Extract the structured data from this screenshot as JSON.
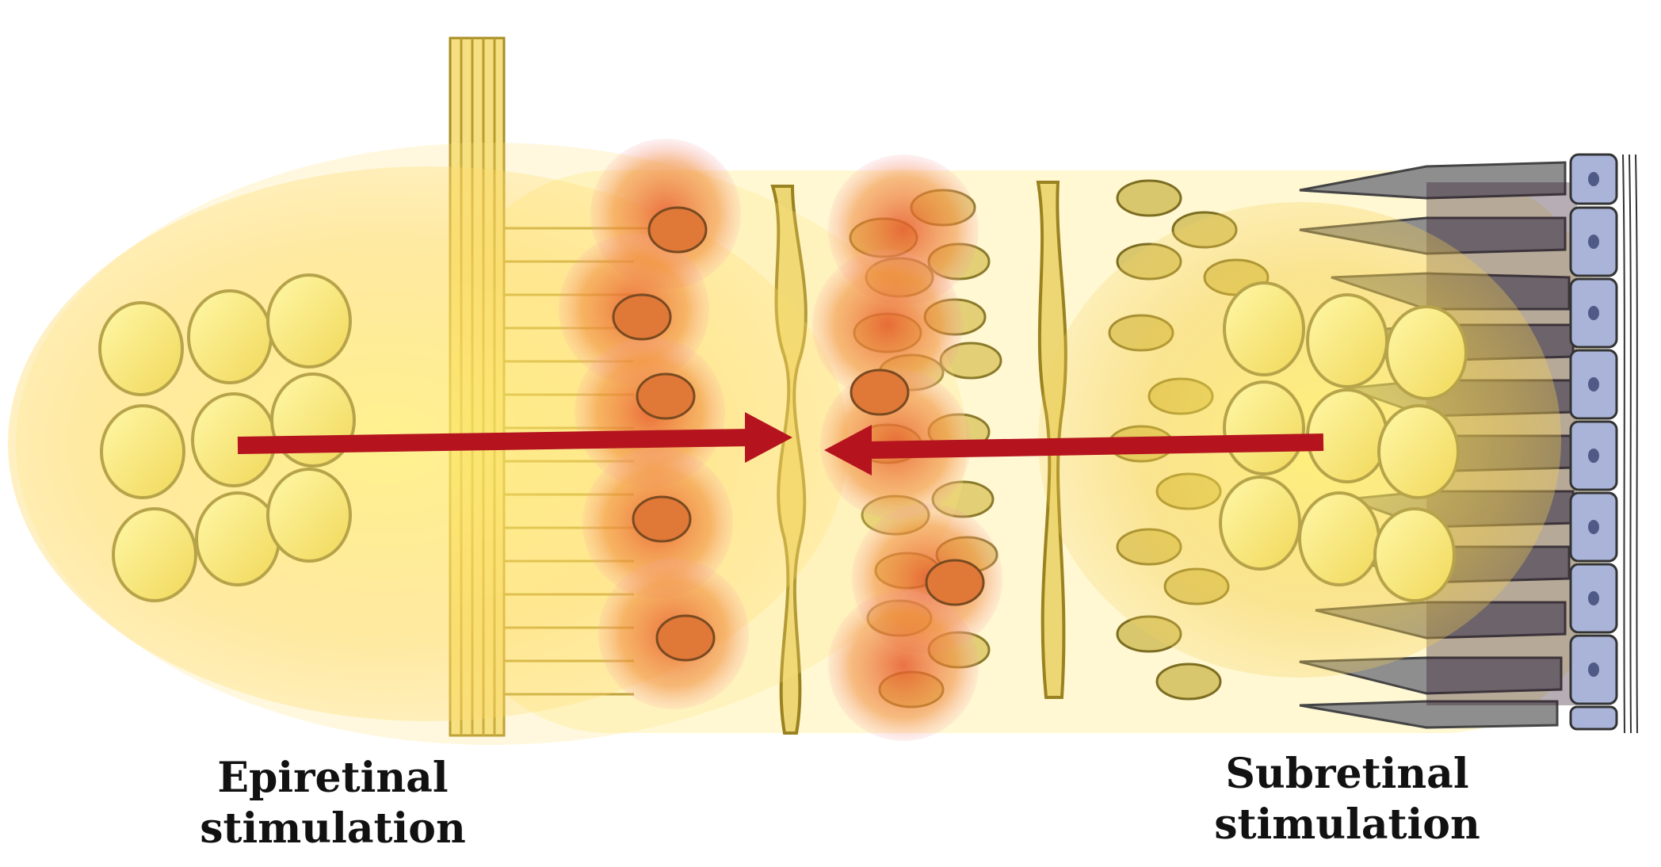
{
  "labels": {
    "epiretinal_line1": "Epiretinal",
    "epiretinal_line2": "stimulation",
    "subretinal_line1": "Subretinal",
    "subretinal_line2": "stimulation"
  },
  "colors": {
    "arrow": "#b5141e",
    "glow": "#ffe36b",
    "cell_fill": "#e6d27a",
    "cell_stroke": "#8a7a2a",
    "hot_cell": "#e9653a",
    "photoreceptor": "#8c8c8c",
    "rpe": "#aab4d8"
  },
  "icons": {
    "epiretinal_array": "electrode-array-icon",
    "subretinal_array": "electrode-array-icon"
  }
}
